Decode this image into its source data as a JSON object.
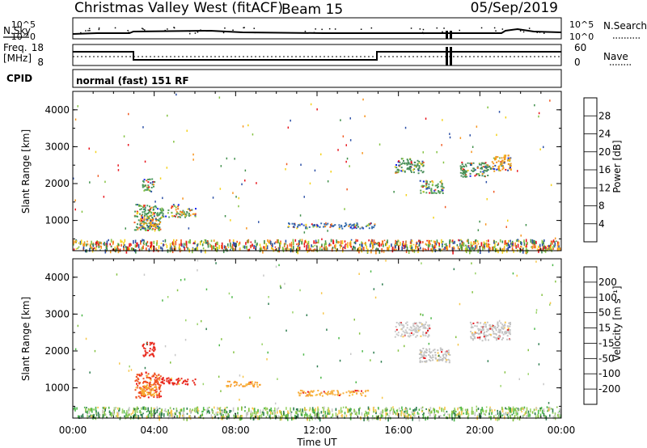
{
  "header": {
    "station": "Christmas Valley West (fitACF)",
    "beam": "Beam 15",
    "date": "05/Sep/2019"
  },
  "top_panels": {
    "nsky_label": "N.Sky",
    "nsearch_label": "N.Search",
    "noise_ticks_left": [
      "10^5",
      "10^0"
    ],
    "noise_ticks_right": [
      "10^5",
      "10^0"
    ],
    "freq_label": "Freq.",
    "freq_unit": "[MHz]",
    "freq_ticks": [
      "18",
      "8"
    ],
    "nave_label": "Nave",
    "nave_ticks": [
      "60",
      "0"
    ],
    "cpid_label": "CPID",
    "cpid_value": "normal (fast) 151 RF"
  },
  "chart_data": [
    {
      "type": "heatmap",
      "panel": "power",
      "ylabel": "Slant Range [km]",
      "y_ticks": [
        "4000",
        "3000",
        "2000",
        "1000"
      ],
      "ylim": [
        180,
        4500
      ],
      "xlim_hours": [
        0,
        24
      ],
      "colorbar_label": "Power [dB]",
      "colorbar_ticks": [
        "28",
        "24",
        "20",
        "16",
        "12",
        "8",
        "4"
      ],
      "colorbar_colors": [
        "#e8141c",
        "#f05a22",
        "#f7941d",
        "#f4d21b",
        "#84c242",
        "#3f8f4a",
        "#2b4fa6",
        "#1122ee"
      ],
      "regions": [
        {
          "t": [
            3.0,
            4.3
          ],
          "r": [
            750,
            1450
          ],
          "c": "#4a9a5c"
        },
        {
          "t": [
            3.3,
            4.1
          ],
          "r": [
            800,
            1150
          ],
          "c": "#e8a020"
        },
        {
          "t": [
            4.3,
            6.0
          ],
          "r": [
            1100,
            1350
          ],
          "c": "#5a9a6a"
        },
        {
          "t": [
            4.8,
            5.2
          ],
          "r": [
            1300,
            1450
          ],
          "c": "#f07020"
        },
        {
          "t": [
            3.4,
            4.0
          ],
          "r": [
            1800,
            2150
          ],
          "c": "#4a9a5c"
        },
        {
          "t": [
            15.8,
            17.2
          ],
          "r": [
            2300,
            2700
          ],
          "c": "#4a8f5a"
        },
        {
          "t": [
            17.0,
            18.2
          ],
          "r": [
            1750,
            2100
          ],
          "c": "#5aa060"
        },
        {
          "t": [
            20.5,
            21.5
          ],
          "r": [
            2350,
            2800
          ],
          "c": "#f09a20"
        },
        {
          "t": [
            19.0,
            20.5
          ],
          "r": [
            2200,
            2600
          ],
          "c": "#4a8f5a"
        },
        {
          "t": [
            10.5,
            14.8
          ],
          "r": [
            800,
            950
          ],
          "c": "#3a6fae"
        }
      ]
    },
    {
      "type": "heatmap",
      "panel": "velocity",
      "ylabel": "Slant Range [km]",
      "y_ticks": [
        "4000",
        "3000",
        "2000",
        "1000"
      ],
      "ylim": [
        180,
        4500
      ],
      "xlim_hours": [
        0,
        24
      ],
      "x_ticks": [
        "00:00",
        "04:00",
        "08:00",
        "12:00",
        "16:00",
        "20:00",
        "00:00"
      ],
      "xlabel": "Time UT",
      "colorbar_label": "Velocity [m s⁻¹]",
      "colorbar_ticks": [
        "200",
        "100",
        "50",
        "15",
        "-15",
        "-50",
        "-100",
        "-200"
      ],
      "colorbar_colors": [
        "#1f3fa8",
        "#2e7d4f",
        "#4db849",
        "#9bd36a",
        "#c8c8c8",
        "#f7c64a",
        "#f79a1e",
        "#f4561e",
        "#e8141c"
      ],
      "regions": [
        {
          "t": [
            3.0,
            4.3
          ],
          "r": [
            750,
            1450
          ],
          "c": "#f05020"
        },
        {
          "t": [
            3.3,
            4.1
          ],
          "r": [
            800,
            1100
          ],
          "c": "#f7b030"
        },
        {
          "t": [
            4.3,
            6.0
          ],
          "r": [
            1100,
            1300
          ],
          "c": "#e8281c"
        },
        {
          "t": [
            3.4,
            4.0
          ],
          "r": [
            1850,
            2250
          ],
          "c": "#e8281c"
        },
        {
          "t": [
            7.5,
            9.2
          ],
          "r": [
            1050,
            1200
          ],
          "c": "#f7a030"
        },
        {
          "t": [
            11.0,
            14.5
          ],
          "r": [
            800,
            950
          ],
          "c": "#f7b040"
        },
        {
          "t": [
            15.8,
            17.5
          ],
          "r": [
            2400,
            2800
          ],
          "c": "#c8c8c8"
        },
        {
          "t": [
            17.0,
            18.5
          ],
          "r": [
            1700,
            2100
          ],
          "c": "#c0c0c0"
        },
        {
          "t": [
            19.5,
            21.5
          ],
          "r": [
            2300,
            2800
          ],
          "c": "#c4c4c4"
        }
      ]
    }
  ]
}
